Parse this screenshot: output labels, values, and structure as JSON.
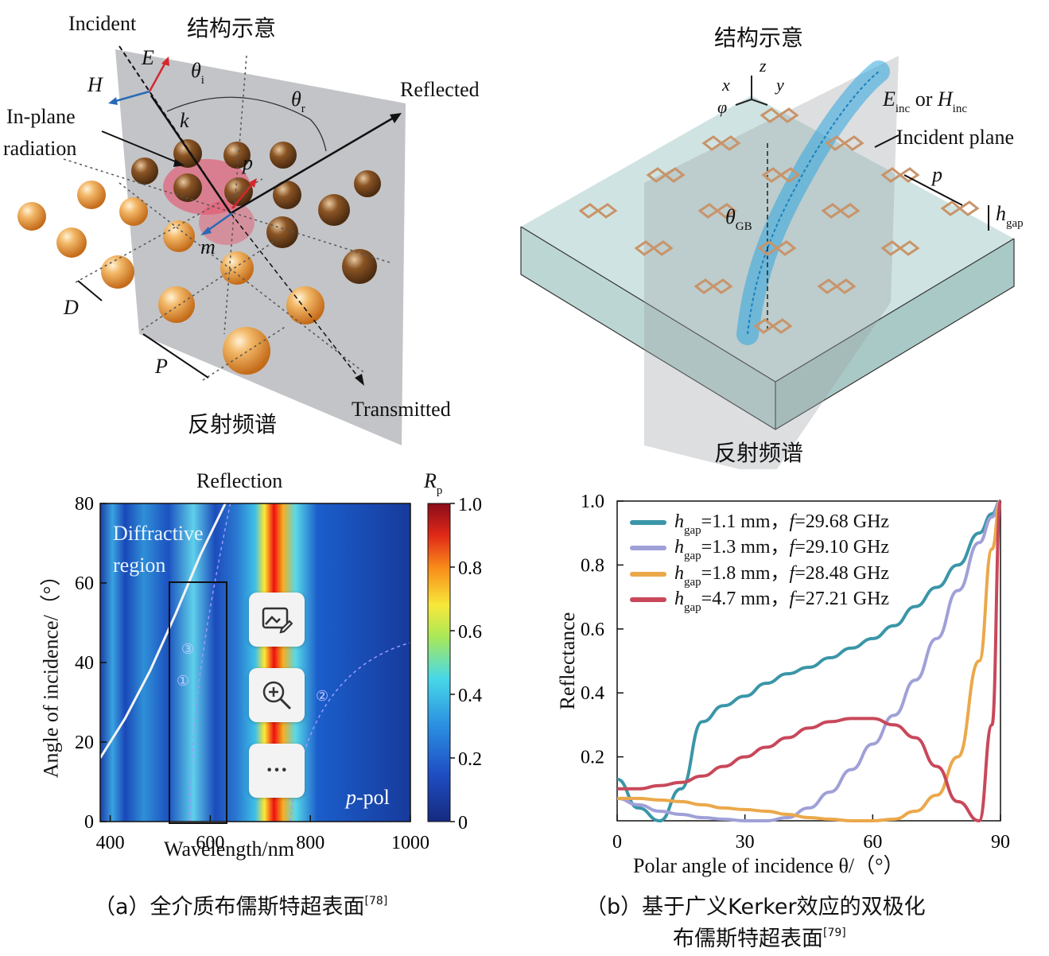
{
  "panel_a_top": {
    "title": "结构示意",
    "bottom_title": "反射频谱",
    "labels": {
      "incident": "Incident",
      "reflected": "Reflected",
      "transmitted": "Transmitted",
      "in_plane_1": "In-plane",
      "in_plane_2": "radiation",
      "E": "E",
      "H": "H",
      "k": "k",
      "p": "p",
      "m": "m",
      "D": "D",
      "P": "P",
      "theta": "θ",
      "sub_i": "i",
      "sub_r": "r"
    }
  },
  "panel_b_top": {
    "title": "结构示意",
    "bottom_title": "反射频谱",
    "labels": {
      "x": "x",
      "y": "y",
      "z": "z",
      "phi": "φ",
      "E": "E",
      "or": " or ",
      "H": "H",
      "inc": "inc",
      "incident_plane": "Incident plane",
      "p": "p",
      "h": "h",
      "gap": "gap",
      "theta": "θ",
      "GB": "GB"
    }
  },
  "chart_a": {
    "title": "Reflection",
    "colorbar_label": "R",
    "colorbar_sub": "p",
    "colorbar_ticks": [
      "1.0",
      "0.8",
      "0.6",
      "0.4",
      "0.2",
      "0"
    ],
    "annotation_1": "Diffractive",
    "annotation_2": "region",
    "pol_label": "p",
    "pol_suffix": "-pol",
    "markers": [
      "①",
      "②",
      "③"
    ],
    "toolbar": {
      "edit_icon": "image-edit-icon",
      "zoom_icon": "zoom-in-icon",
      "more_label": "···"
    }
  },
  "caption_a": {
    "text": "（a）全介质布儒斯特超表面",
    "ref": "[78]"
  },
  "caption_b": {
    "line1": "（b）基于广义Kerker效应的双极化",
    "line2": "布儒斯特超表面",
    "ref": "[79]"
  },
  "chart_data": [
    {
      "type": "heatmap",
      "title": "Reflection",
      "xlabel": "Wavelength/nm",
      "ylabel": "Angle of incidence/（°）",
      "xlim": [
        380,
        1000
      ],
      "ylim": [
        0,
        80
      ],
      "xticks": [
        "400",
        "600",
        "800",
        "1000"
      ],
      "yticks": [
        "0",
        "20",
        "40",
        "60",
        "80"
      ],
      "colorbar": {
        "label": "Rp",
        "range": [
          0,
          1.0
        ]
      },
      "overlays": [
        {
          "name": "diffraction-boundary",
          "x": [
            380,
            430,
            480,
            530,
            580,
            630
          ],
          "y": [
            16,
            26,
            38,
            52,
            67,
            80
          ]
        },
        {
          "name": "brewster-band-1",
          "x": [
            700,
            690,
            685,
            682,
            680,
            678
          ],
          "y": [
            0,
            20,
            40,
            60,
            70,
            80
          ]
        }
      ]
    },
    {
      "type": "line",
      "xlabel": "Polar angle of incidence θ/（°）",
      "ylabel": "Reflectance",
      "xlim": [
        0,
        90
      ],
      "ylim": [
        0,
        1.0
      ],
      "xticks": [
        "0",
        "30",
        "60",
        "90"
      ],
      "yticks": [
        "0.2",
        "0.4",
        "0.6",
        "0.8",
        "1.0"
      ],
      "legend_position": "top-left",
      "x": [
        0,
        5,
        10,
        15,
        20,
        25,
        30,
        35,
        40,
        45,
        50,
        55,
        60,
        65,
        70,
        75,
        80,
        85,
        88,
        90
      ],
      "series": [
        {
          "name_h": "h",
          "name_sub": "gap",
          "name_rest": "=1.1 mm，",
          "name_f": "f",
          "name_val": "=29.68 GHz",
          "color": "#3a96a8",
          "values": [
            0.13,
            0.04,
            0.0,
            0.1,
            0.31,
            0.36,
            0.39,
            0.43,
            0.46,
            0.48,
            0.51,
            0.54,
            0.57,
            0.61,
            0.67,
            0.73,
            0.8,
            0.9,
            0.96,
            1.0
          ]
        },
        {
          "name_h": "h",
          "name_sub": "gap",
          "name_rest": "=1.3 mm，",
          "name_f": "f",
          "name_val": "=29.10 GHz",
          "color": "#a0a0d8",
          "values": [
            0.07,
            0.05,
            0.03,
            0.02,
            0.01,
            0.005,
            0.0,
            0.0,
            0.01,
            0.04,
            0.09,
            0.16,
            0.24,
            0.33,
            0.44,
            0.57,
            0.72,
            0.87,
            0.95,
            1.0
          ]
        },
        {
          "name_h": "h",
          "name_sub": "gap",
          "name_rest": "=1.8 mm，",
          "name_f": "f",
          "name_val": "=28.48 GHz",
          "color": "#eba84a",
          "values": [
            0.07,
            0.07,
            0.065,
            0.06,
            0.05,
            0.04,
            0.035,
            0.03,
            0.02,
            0.01,
            0.005,
            0.0,
            0.0,
            0.005,
            0.03,
            0.08,
            0.2,
            0.5,
            0.85,
            1.0
          ]
        },
        {
          "name_h": "h",
          "name_sub": "gap",
          "name_rest": "=4.7 mm，",
          "name_f": "f",
          "name_val": "=27.21 GHz",
          "color": "#c8485a",
          "values": [
            0.1,
            0.1,
            0.11,
            0.12,
            0.14,
            0.17,
            0.2,
            0.23,
            0.26,
            0.29,
            0.31,
            0.32,
            0.32,
            0.3,
            0.26,
            0.17,
            0.06,
            0.0,
            0.3,
            1.0
          ]
        }
      ]
    }
  ]
}
